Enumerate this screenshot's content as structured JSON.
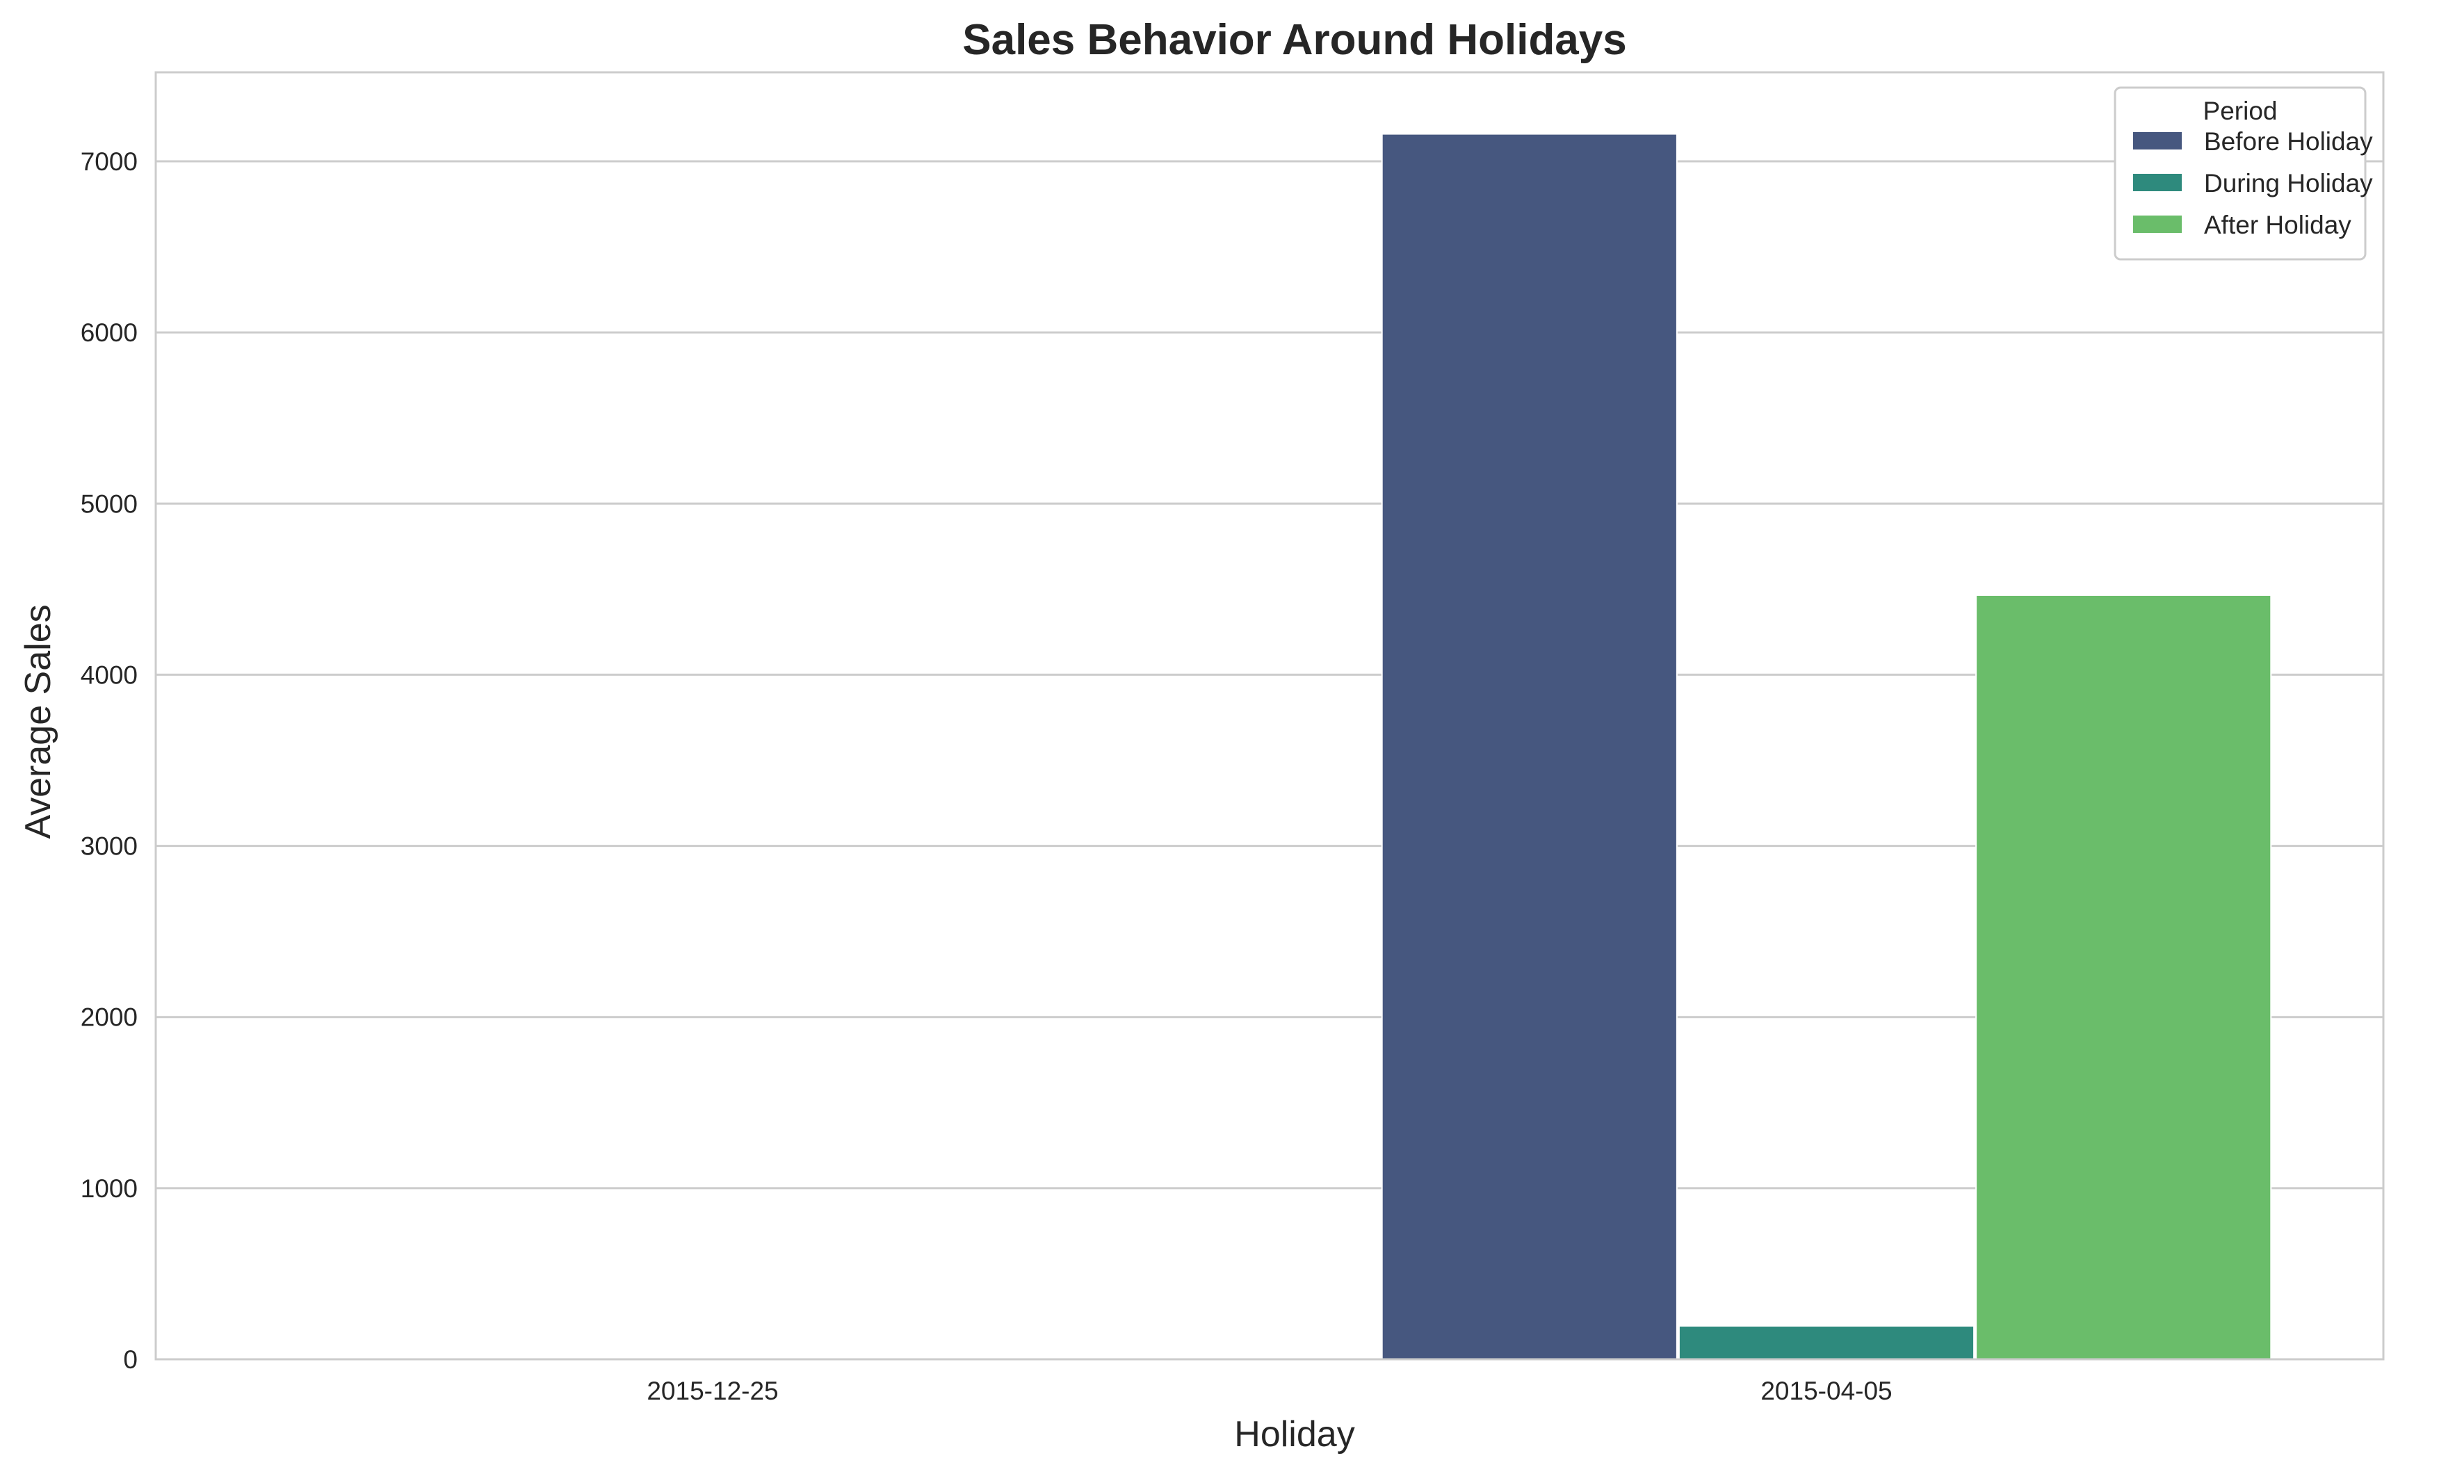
{
  "chart_data": {
    "type": "bar",
    "title": "Sales Behavior Around Holidays",
    "xlabel": "Holiday",
    "ylabel": "Average Sales",
    "categories": [
      "2015-12-25",
      "2015-04-05"
    ],
    "series": [
      {
        "name": "Before Holiday",
        "color": "#46577f",
        "values": [
          0,
          7160
        ]
      },
      {
        "name": "During Holiday",
        "color": "#2e8a7d",
        "values": [
          0,
          195
        ]
      },
      {
        "name": "After Holiday",
        "color": "#6abd6a",
        "values": [
          0,
          4465
        ]
      }
    ],
    "yticks": [
      0,
      1000,
      2000,
      3000,
      4000,
      5000,
      6000,
      7000
    ],
    "ylim": [
      0,
      7520
    ],
    "grid": true,
    "legend": {
      "title": "Period",
      "position": "top-right"
    }
  }
}
